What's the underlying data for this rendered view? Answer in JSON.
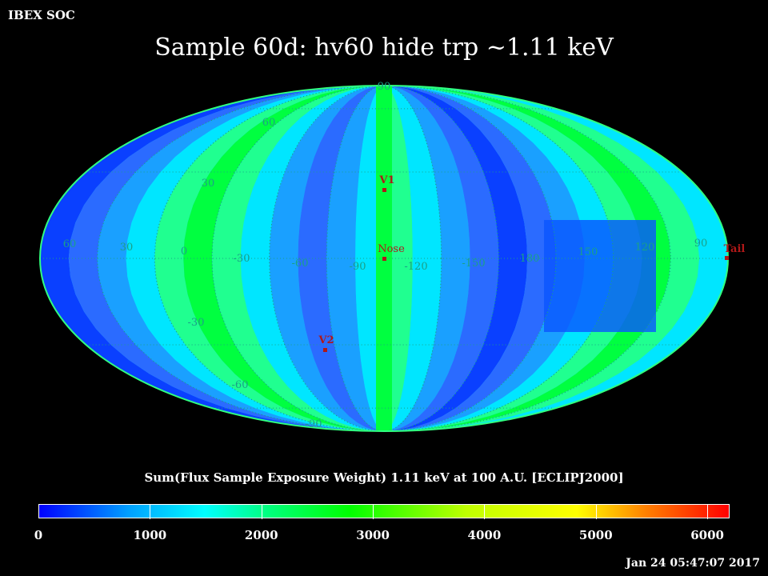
{
  "header": {
    "org": "IBEX SOC",
    "title": "Sample 60d: hv60 hide trp ~1.11 keV",
    "timestamp": "Jan 24 05:47:07 2017"
  },
  "map": {
    "projection": "mollweide",
    "lat_labels": [
      "90",
      "60",
      "30",
      "-30",
      "-60",
      "-90"
    ],
    "lon_labels": [
      "60",
      "30",
      "0",
      "-30",
      "-60",
      "-90",
      "-120",
      "-150",
      "180",
      "150",
      "120",
      "90"
    ],
    "markers": [
      {
        "id": "v1",
        "label": "V1"
      },
      {
        "id": "nose",
        "label": "Nose"
      },
      {
        "id": "v2",
        "label": "V2"
      },
      {
        "id": "tail",
        "label": "Tail"
      }
    ],
    "grid_color": "#1aa088",
    "marker_color": "#b01818"
  },
  "colorbar": {
    "title": "Sum(Flux Sample Exposure Weight)  1.11 keV at 100 A.U. [ECLIPJ2000]",
    "min": 0,
    "max": 6200,
    "tick_labels": [
      "0",
      "1000",
      "2000",
      "3000",
      "4000",
      "5000",
      "6000"
    ],
    "tick_values": [
      0,
      1000,
      2000,
      3000,
      4000,
      5000,
      6000
    ]
  }
}
